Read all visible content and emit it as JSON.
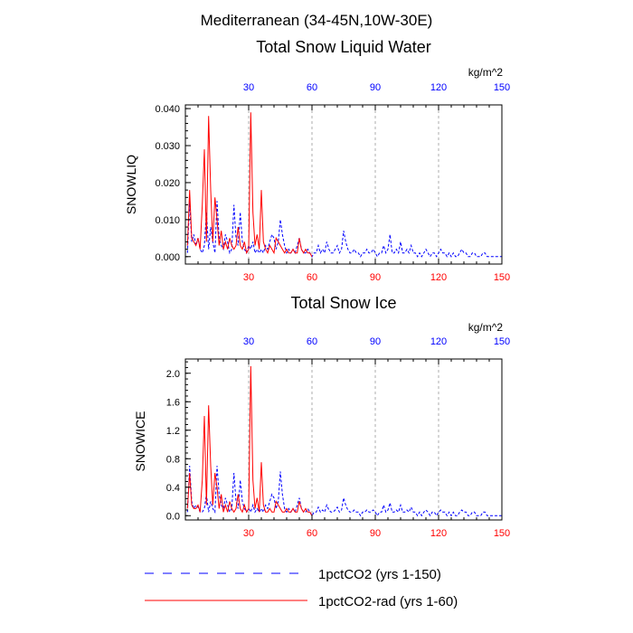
{
  "suptitle": "Mediterranean (34-45N,10W-30E)",
  "colors": {
    "series_a": "#0000ff",
    "series_b": "#ff0000",
    "grid": "#999999",
    "bottom_ticks": "#ff0000",
    "top_ticks": "#0000ff"
  },
  "legend": [
    {
      "name": "1pctCO2 (yrs 1-150)",
      "style": "dashed",
      "color": "#0000ff"
    },
    {
      "name": "1pctCO2-rad (yrs 1-60)",
      "style": "solid",
      "color": "#ff0000"
    }
  ],
  "chart_data": [
    {
      "type": "line",
      "title": "Total Snow Liquid Water",
      "units": "kg/m^2",
      "ylabel": "SNOWLIQ",
      "xlabel": "",
      "xlim": [
        0,
        150
      ],
      "ylim": [
        -0.002,
        0.041
      ],
      "xticks": [
        30,
        60,
        90,
        120,
        150
      ],
      "yticks": [
        0,
        0.01,
        0.02,
        0.03,
        0.04
      ],
      "ytick_labels": [
        "0.000",
        "0.010",
        "0.020",
        "0.030",
        "0.040"
      ],
      "grid": "vertical dashed at 30, 60, 90, 120",
      "series": [
        {
          "name": "1pctCO2 (yrs 1-150)",
          "x": [
            1,
            2,
            3,
            4,
            5,
            6,
            7,
            8,
            9,
            10,
            11,
            12,
            13,
            14,
            15,
            16,
            17,
            18,
            19,
            20,
            21,
            22,
            23,
            24,
            25,
            26,
            27,
            28,
            29,
            30,
            31,
            32,
            33,
            34,
            35,
            36,
            37,
            38,
            39,
            40,
            41,
            42,
            43,
            44,
            45,
            46,
            47,
            48,
            49,
            50,
            51,
            52,
            53,
            54,
            55,
            56,
            57,
            58,
            59,
            60,
            61,
            62,
            63,
            64,
            65,
            66,
            67,
            68,
            69,
            70,
            71,
            72,
            73,
            74,
            75,
            76,
            77,
            78,
            79,
            80,
            81,
            82,
            83,
            84,
            85,
            86,
            87,
            88,
            89,
            90,
            91,
            92,
            93,
            94,
            95,
            96,
            97,
            98,
            99,
            100,
            101,
            102,
            103,
            104,
            105,
            106,
            107,
            108,
            109,
            110,
            111,
            112,
            113,
            114,
            115,
            116,
            117,
            118,
            119,
            120,
            121,
            122,
            123,
            124,
            125,
            126,
            127,
            128,
            129,
            130,
            131,
            132,
            133,
            134,
            135,
            136,
            137,
            138,
            139,
            140,
            141,
            142,
            143,
            144,
            145,
            146,
            147,
            148,
            149,
            150
          ],
          "y": [
            0.001,
            0.015,
            0.004,
            0.006,
            0.003,
            0.005,
            0.002,
            0.001,
            0.003,
            0.012,
            0.002,
            0.008,
            0.004,
            0.001,
            0.015,
            0.005,
            0.003,
            0.002,
            0.006,
            0.004,
            0.001,
            0.002,
            0.014,
            0.005,
            0.003,
            0.012,
            0.004,
            0.002,
            0.001,
            0.003,
            0.002,
            0.004,
            0.001,
            0.002,
            0.001,
            0.002,
            0.001,
            0.003,
            0.002,
            0.004,
            0.006,
            0.005,
            0.002,
            0.004,
            0.01,
            0.006,
            0.003,
            0.001,
            0.002,
            0.001,
            0.002,
            0.001,
            0.003,
            0.005,
            0.002,
            0.001,
            0.001,
            0.002,
            0.001,
            0.0,
            0.001,
            0.001,
            0.003,
            0.001,
            0.002,
            0.001,
            0.004,
            0.002,
            0.001,
            0.001,
            0.002,
            0.003,
            0.001,
            0.002,
            0.007,
            0.004,
            0.002,
            0.001,
            0.001,
            0.002,
            0.001,
            0.001,
            0.0,
            0.001,
            0.001,
            0.002,
            0.001,
            0.001,
            0.002,
            0.001,
            0.0,
            0.001,
            0.001,
            0.003,
            0.001,
            0.002,
            0.006,
            0.001,
            0.001,
            0.002,
            0.001,
            0.004,
            0.001,
            0.001,
            0.002,
            0.001,
            0.003,
            0.001,
            0.001,
            0.0,
            0.001,
            0.0,
            0.001,
            0.002,
            0.001,
            0.0,
            0.001,
            0.001,
            0.0,
            0.001,
            0.002,
            0.001,
            0.001,
            0.0,
            0.001,
            0.0,
            0.001,
            0.0,
            0.0,
            0.001,
            0.002,
            0.001,
            0.001,
            0.0,
            0.0,
            0.001,
            0.001,
            0.0,
            0.0,
            0.0,
            0.001,
            0.001,
            0.0,
            0.0,
            0.0,
            0.0,
            0.0,
            0.0,
            0.0,
            0.0
          ]
        },
        {
          "name": "1pctCO2-rad (yrs 1-60)",
          "x": [
            1,
            2,
            3,
            4,
            5,
            6,
            7,
            8,
            9,
            10,
            11,
            12,
            13,
            14,
            15,
            16,
            17,
            18,
            19,
            20,
            21,
            22,
            23,
            24,
            25,
            26,
            27,
            28,
            29,
            30,
            31,
            32,
            33,
            34,
            35,
            36,
            37,
            38,
            39,
            40,
            41,
            42,
            43,
            44,
            45,
            46,
            47,
            48,
            49,
            50,
            51,
            52,
            53,
            54,
            55,
            56,
            57,
            58,
            59,
            60
          ],
          "y": [
            0.003,
            0.018,
            0.005,
            0.004,
            0.003,
            0.005,
            0.002,
            0.014,
            0.029,
            0.004,
            0.038,
            0.018,
            0.004,
            0.016,
            0.01,
            0.003,
            0.007,
            0.002,
            0.004,
            0.002,
            0.005,
            0.003,
            0.002,
            0.003,
            0.008,
            0.003,
            0.002,
            0.004,
            0.001,
            0.002,
            0.039,
            0.012,
            0.003,
            0.006,
            0.002,
            0.018,
            0.004,
            0.002,
            0.001,
            0.003,
            0.002,
            0.001,
            0.005,
            0.004,
            0.003,
            0.002,
            0.001,
            0.002,
            0.001,
            0.001,
            0.002,
            0.001,
            0.001,
            0.005,
            0.002,
            0.001,
            0.002,
            0.001,
            0.001,
            0.0
          ]
        }
      ]
    },
    {
      "type": "line",
      "title": "Total Snow Ice",
      "units": "kg/m^2",
      "ylabel": "SNOWICE",
      "xlabel": "",
      "xlim": [
        0,
        150
      ],
      "ylim": [
        -0.06,
        2.2
      ],
      "xticks": [
        30,
        60,
        90,
        120,
        150
      ],
      "yticks": [
        0,
        0.4,
        0.8,
        1.2,
        1.6,
        2.0
      ],
      "ytick_labels": [
        "0.0",
        "0.4",
        "0.8",
        "1.2",
        "1.6",
        "2.0"
      ],
      "grid": "vertical dashed at 30, 60, 90, 120",
      "series": [
        {
          "name": "1pctCO2 (yrs 1-150)",
          "x": [
            1,
            2,
            3,
            4,
            5,
            6,
            7,
            8,
            9,
            10,
            11,
            12,
            13,
            14,
            15,
            16,
            17,
            18,
            19,
            20,
            21,
            22,
            23,
            24,
            25,
            26,
            27,
            28,
            29,
            30,
            31,
            32,
            33,
            34,
            35,
            36,
            37,
            38,
            39,
            40,
            41,
            42,
            43,
            44,
            45,
            46,
            47,
            48,
            49,
            50,
            51,
            52,
            53,
            54,
            55,
            56,
            57,
            58,
            59,
            60,
            61,
            62,
            63,
            64,
            65,
            66,
            67,
            68,
            69,
            70,
            71,
            72,
            73,
            74,
            75,
            76,
            77,
            78,
            79,
            80,
            81,
            82,
            83,
            84,
            85,
            86,
            87,
            88,
            89,
            90,
            91,
            92,
            93,
            94,
            95,
            96,
            97,
            98,
            99,
            100,
            101,
            102,
            103,
            104,
            105,
            106,
            107,
            108,
            109,
            110,
            111,
            112,
            113,
            114,
            115,
            116,
            117,
            118,
            119,
            120,
            121,
            122,
            123,
            124,
            125,
            126,
            127,
            128,
            129,
            130,
            131,
            132,
            133,
            134,
            135,
            136,
            137,
            138,
            139,
            140,
            141,
            142,
            143,
            144,
            145,
            146,
            147,
            148,
            149,
            150
          ],
          "y": [
            0.05,
            0.7,
            0.2,
            0.1,
            0.15,
            0.12,
            0.05,
            0.05,
            0.1,
            0.3,
            0.05,
            0.2,
            0.1,
            0.05,
            0.7,
            0.3,
            0.15,
            0.1,
            0.25,
            0.15,
            0.05,
            0.1,
            0.6,
            0.2,
            0.1,
            0.5,
            0.2,
            0.1,
            0.05,
            0.1,
            0.05,
            0.15,
            0.05,
            0.1,
            0.05,
            0.1,
            0.05,
            0.15,
            0.1,
            0.2,
            0.3,
            0.25,
            0.1,
            0.2,
            0.62,
            0.3,
            0.1,
            0.05,
            0.1,
            0.05,
            0.1,
            0.05,
            0.15,
            0.25,
            0.1,
            0.05,
            0.05,
            0.1,
            0.05,
            0.0,
            0.05,
            0.05,
            0.12,
            0.05,
            0.08,
            0.05,
            0.15,
            0.08,
            0.05,
            0.05,
            0.08,
            0.12,
            0.05,
            0.08,
            0.25,
            0.15,
            0.08,
            0.05,
            0.05,
            0.08,
            0.05,
            0.05,
            0.0,
            0.05,
            0.05,
            0.08,
            0.05,
            0.05,
            0.08,
            0.05,
            0.0,
            0.05,
            0.05,
            0.15,
            0.05,
            0.08,
            0.18,
            0.05,
            0.05,
            0.08,
            0.05,
            0.15,
            0.05,
            0.05,
            0.08,
            0.05,
            0.12,
            0.05,
            0.05,
            0.0,
            0.05,
            0.0,
            0.05,
            0.08,
            0.05,
            0.0,
            0.05,
            0.05,
            0.0,
            0.05,
            0.08,
            0.05,
            0.05,
            0.0,
            0.05,
            0.0,
            0.05,
            0.0,
            0.0,
            0.05,
            0.08,
            0.05,
            0.05,
            0.0,
            0.0,
            0.05,
            0.05,
            0.0,
            0.0,
            0.0,
            0.05,
            0.05,
            0.0,
            0.0,
            0.0,
            0.0,
            0.0,
            0.0,
            0.0,
            0.0
          ]
        },
        {
          "name": "1pctCO2-rad (yrs 1-60)",
          "x": [
            1,
            2,
            3,
            4,
            5,
            6,
            7,
            8,
            9,
            10,
            11,
            12,
            13,
            14,
            15,
            16,
            17,
            18,
            19,
            20,
            21,
            22,
            23,
            24,
            25,
            26,
            27,
            28,
            29,
            30,
            31,
            32,
            33,
            34,
            35,
            36,
            37,
            38,
            39,
            40,
            41,
            42,
            43,
            44,
            45,
            46,
            47,
            48,
            49,
            50,
            51,
            52,
            53,
            54,
            55,
            56,
            57,
            58,
            59,
            60
          ],
          "y": [
            0.1,
            0.6,
            0.15,
            0.1,
            0.1,
            0.15,
            0.05,
            0.5,
            1.4,
            0.15,
            1.55,
            0.7,
            0.15,
            0.6,
            0.4,
            0.1,
            0.3,
            0.05,
            0.15,
            0.05,
            0.2,
            0.1,
            0.05,
            0.1,
            0.3,
            0.1,
            0.05,
            0.15,
            0.05,
            0.1,
            2.1,
            0.5,
            0.1,
            0.25,
            0.05,
            0.75,
            0.15,
            0.05,
            0.05,
            0.1,
            0.05,
            0.05,
            0.2,
            0.15,
            0.1,
            0.05,
            0.05,
            0.1,
            0.05,
            0.05,
            0.1,
            0.05,
            0.05,
            0.2,
            0.1,
            0.05,
            0.1,
            0.05,
            0.05,
            0.0
          ]
        }
      ]
    }
  ]
}
